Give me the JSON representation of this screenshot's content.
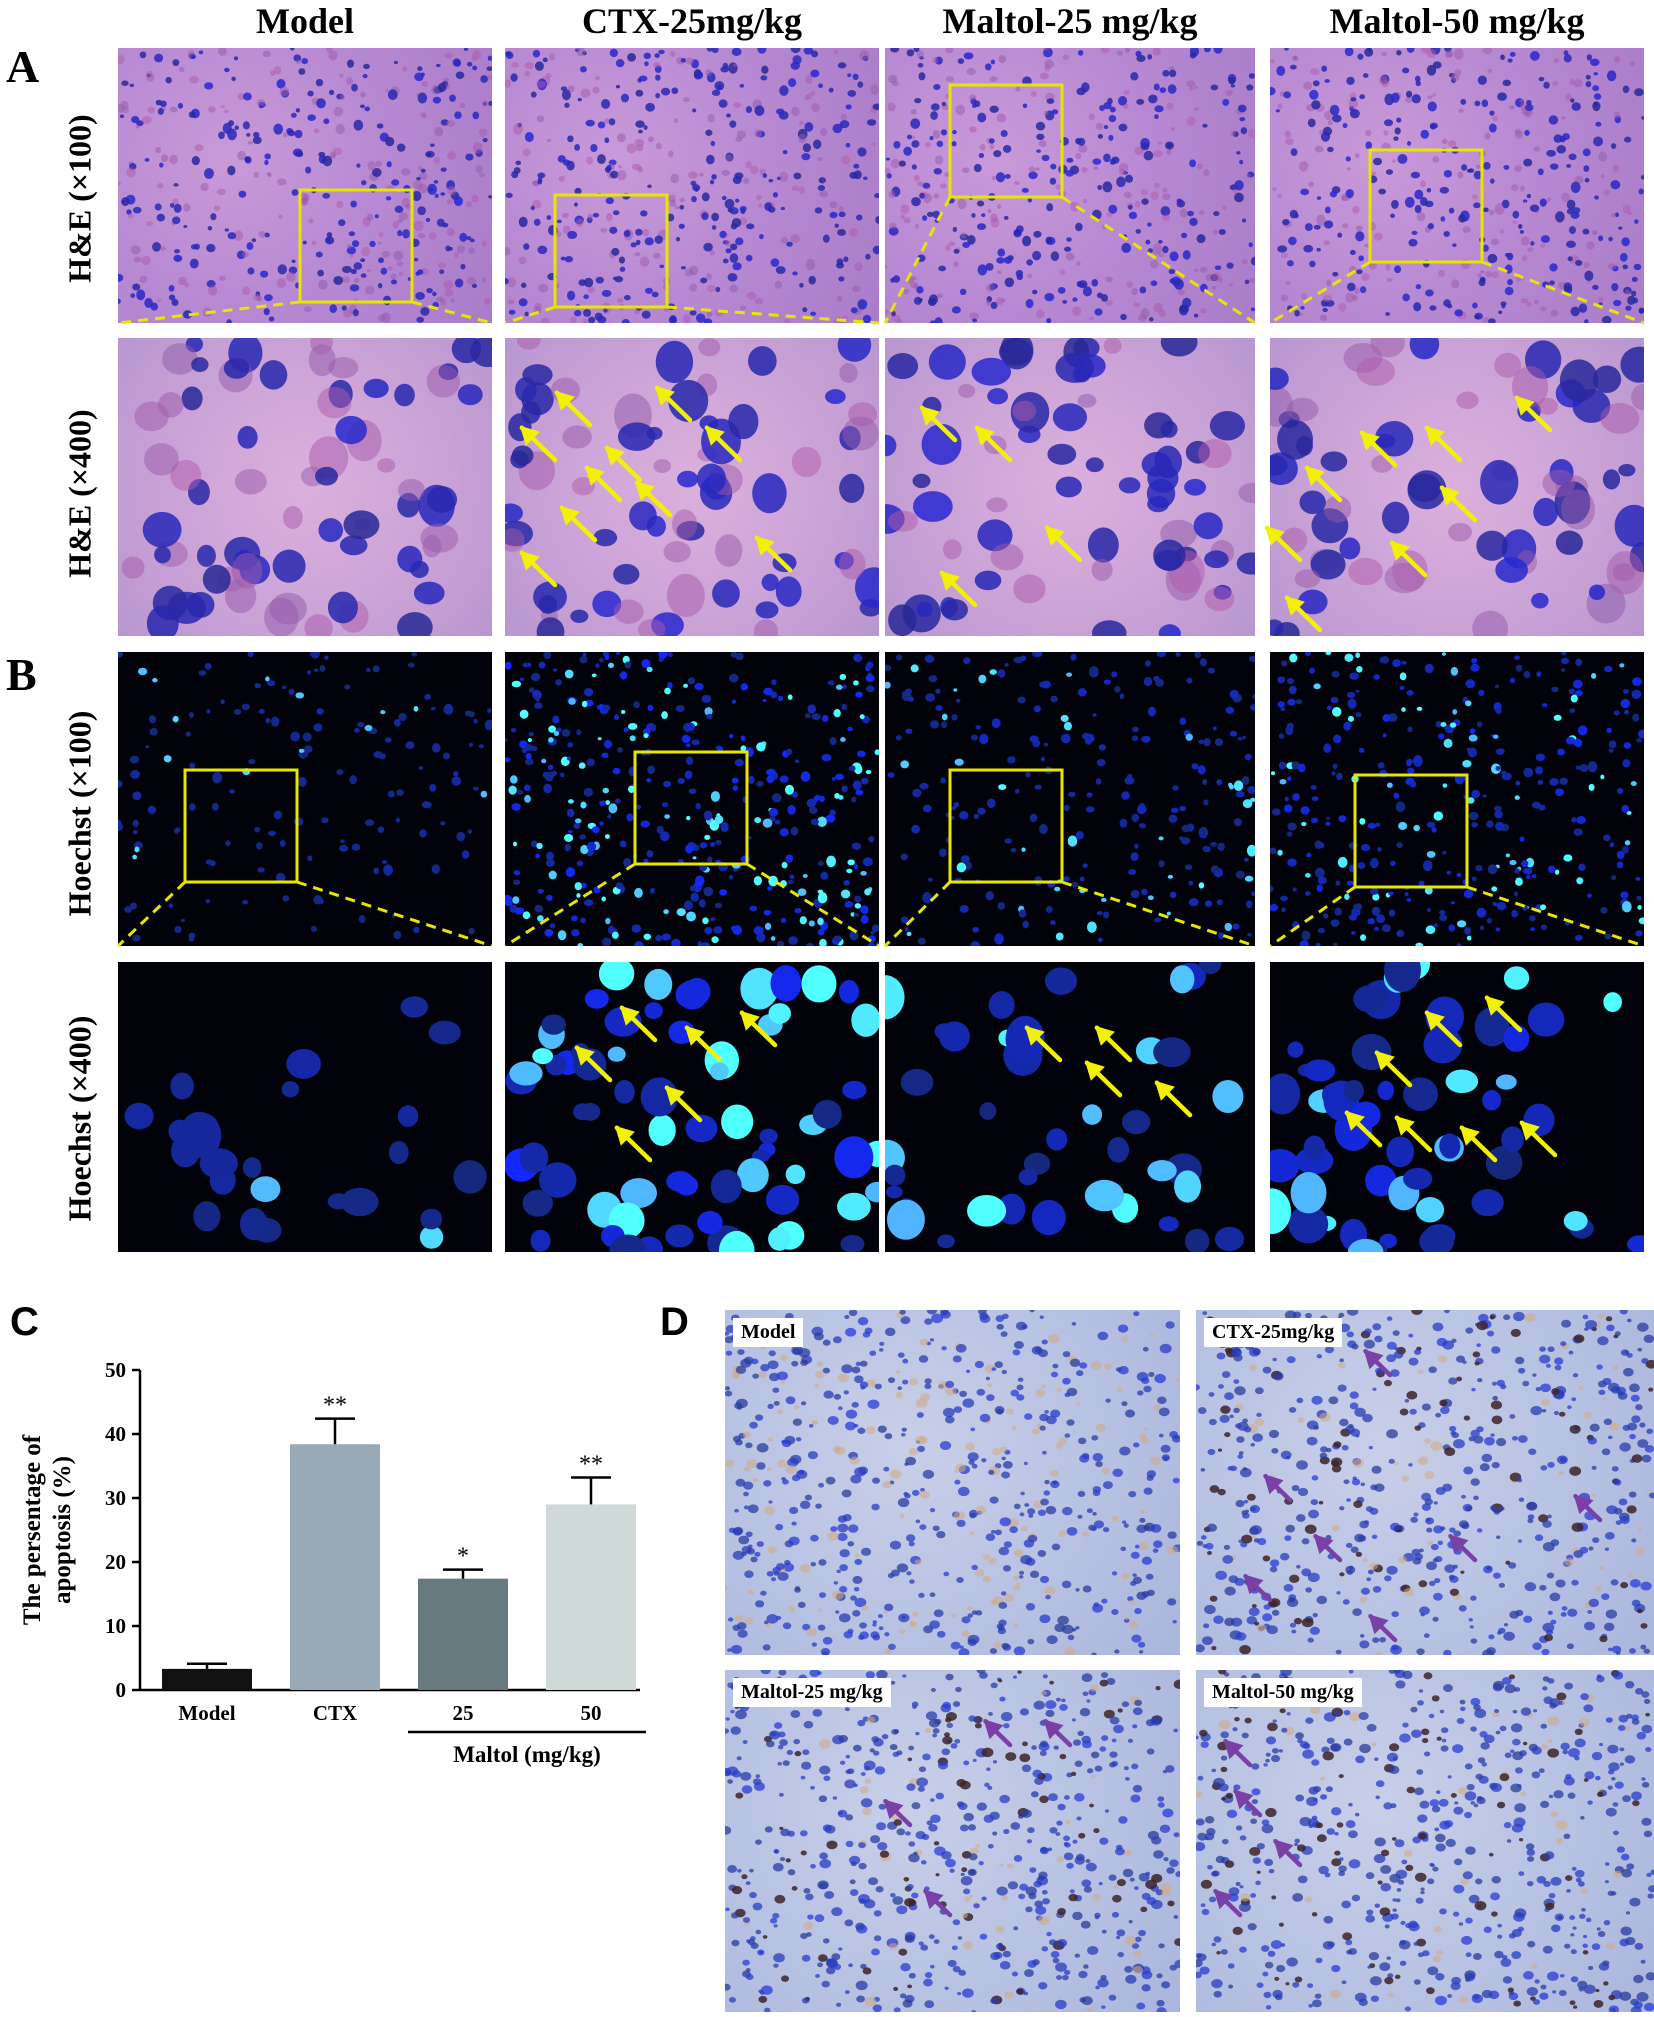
{
  "columns": [
    "Model",
    "CTX-25mg/kg",
    "Maltol-25 mg/kg",
    "Maltol-50 mg/kg"
  ],
  "panel_letters": {
    "a": "A",
    "b": "B",
    "c": "C",
    "d": "D"
  },
  "row_labels": {
    "he100": "H&E (×100)",
    "he400": "H&E (×400)",
    "hoechst100": "Hoechst (×100)",
    "hoechst400": "Hoechst (×400)"
  },
  "ihc_tiles": [
    "Model",
    "CTX-25mg/kg",
    "Maltol-25 mg/kg",
    "Maltol-50 mg/kg"
  ],
  "colors": {
    "highlight_box": "#e6e600",
    "arrow_yellow": "#f2f200",
    "arrow_purple": "#7b3fa8",
    "bar_model": "#111111",
    "bar_ctx": "#9aa9b6",
    "bar_maltol25": "#687a80",
    "bar_maltol50": "#cfdad8"
  },
  "chart_data": {
    "type": "bar",
    "categories": [
      "Model",
      "CTX",
      "25",
      "50"
    ],
    "values": [
      3.3,
      38.4,
      17.4,
      29.0
    ],
    "errors": [
      0.8,
      4.0,
      1.4,
      4.2
    ],
    "significance": [
      "",
      "**",
      "*",
      "**"
    ],
    "ylabel": "The persentage of apoptosis (%)",
    "ylabel_lines": [
      "The persentage of",
      "apoptosis (%)"
    ],
    "yticks": [
      0,
      10,
      20,
      30,
      40,
      50
    ],
    "ylim": [
      0,
      50
    ],
    "group_label": "Maltol (mg/kg)",
    "grid": false
  }
}
